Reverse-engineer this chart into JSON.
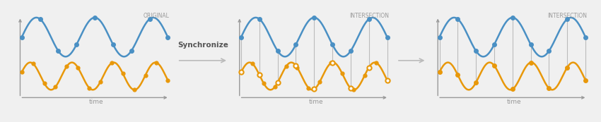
{
  "bg_color": "#f0f0f0",
  "panel_bg": "#ffffff",
  "panel_border": "#cccccc",
  "blue_color": "#4a90c4",
  "orange_color": "#e8980a",
  "axis_color": "#999999",
  "line_color_vertical": "#bbbbbb",
  "title1": "ORIGINAL",
  "title2": "INTERSECTION",
  "title3": "INTERSECTION",
  "arrow_label": "Synchronize",
  "xlabel": "time",
  "text_color": "#999999",
  "arrow_color": "#bbbbbb",
  "synchronize_color": "#555555"
}
